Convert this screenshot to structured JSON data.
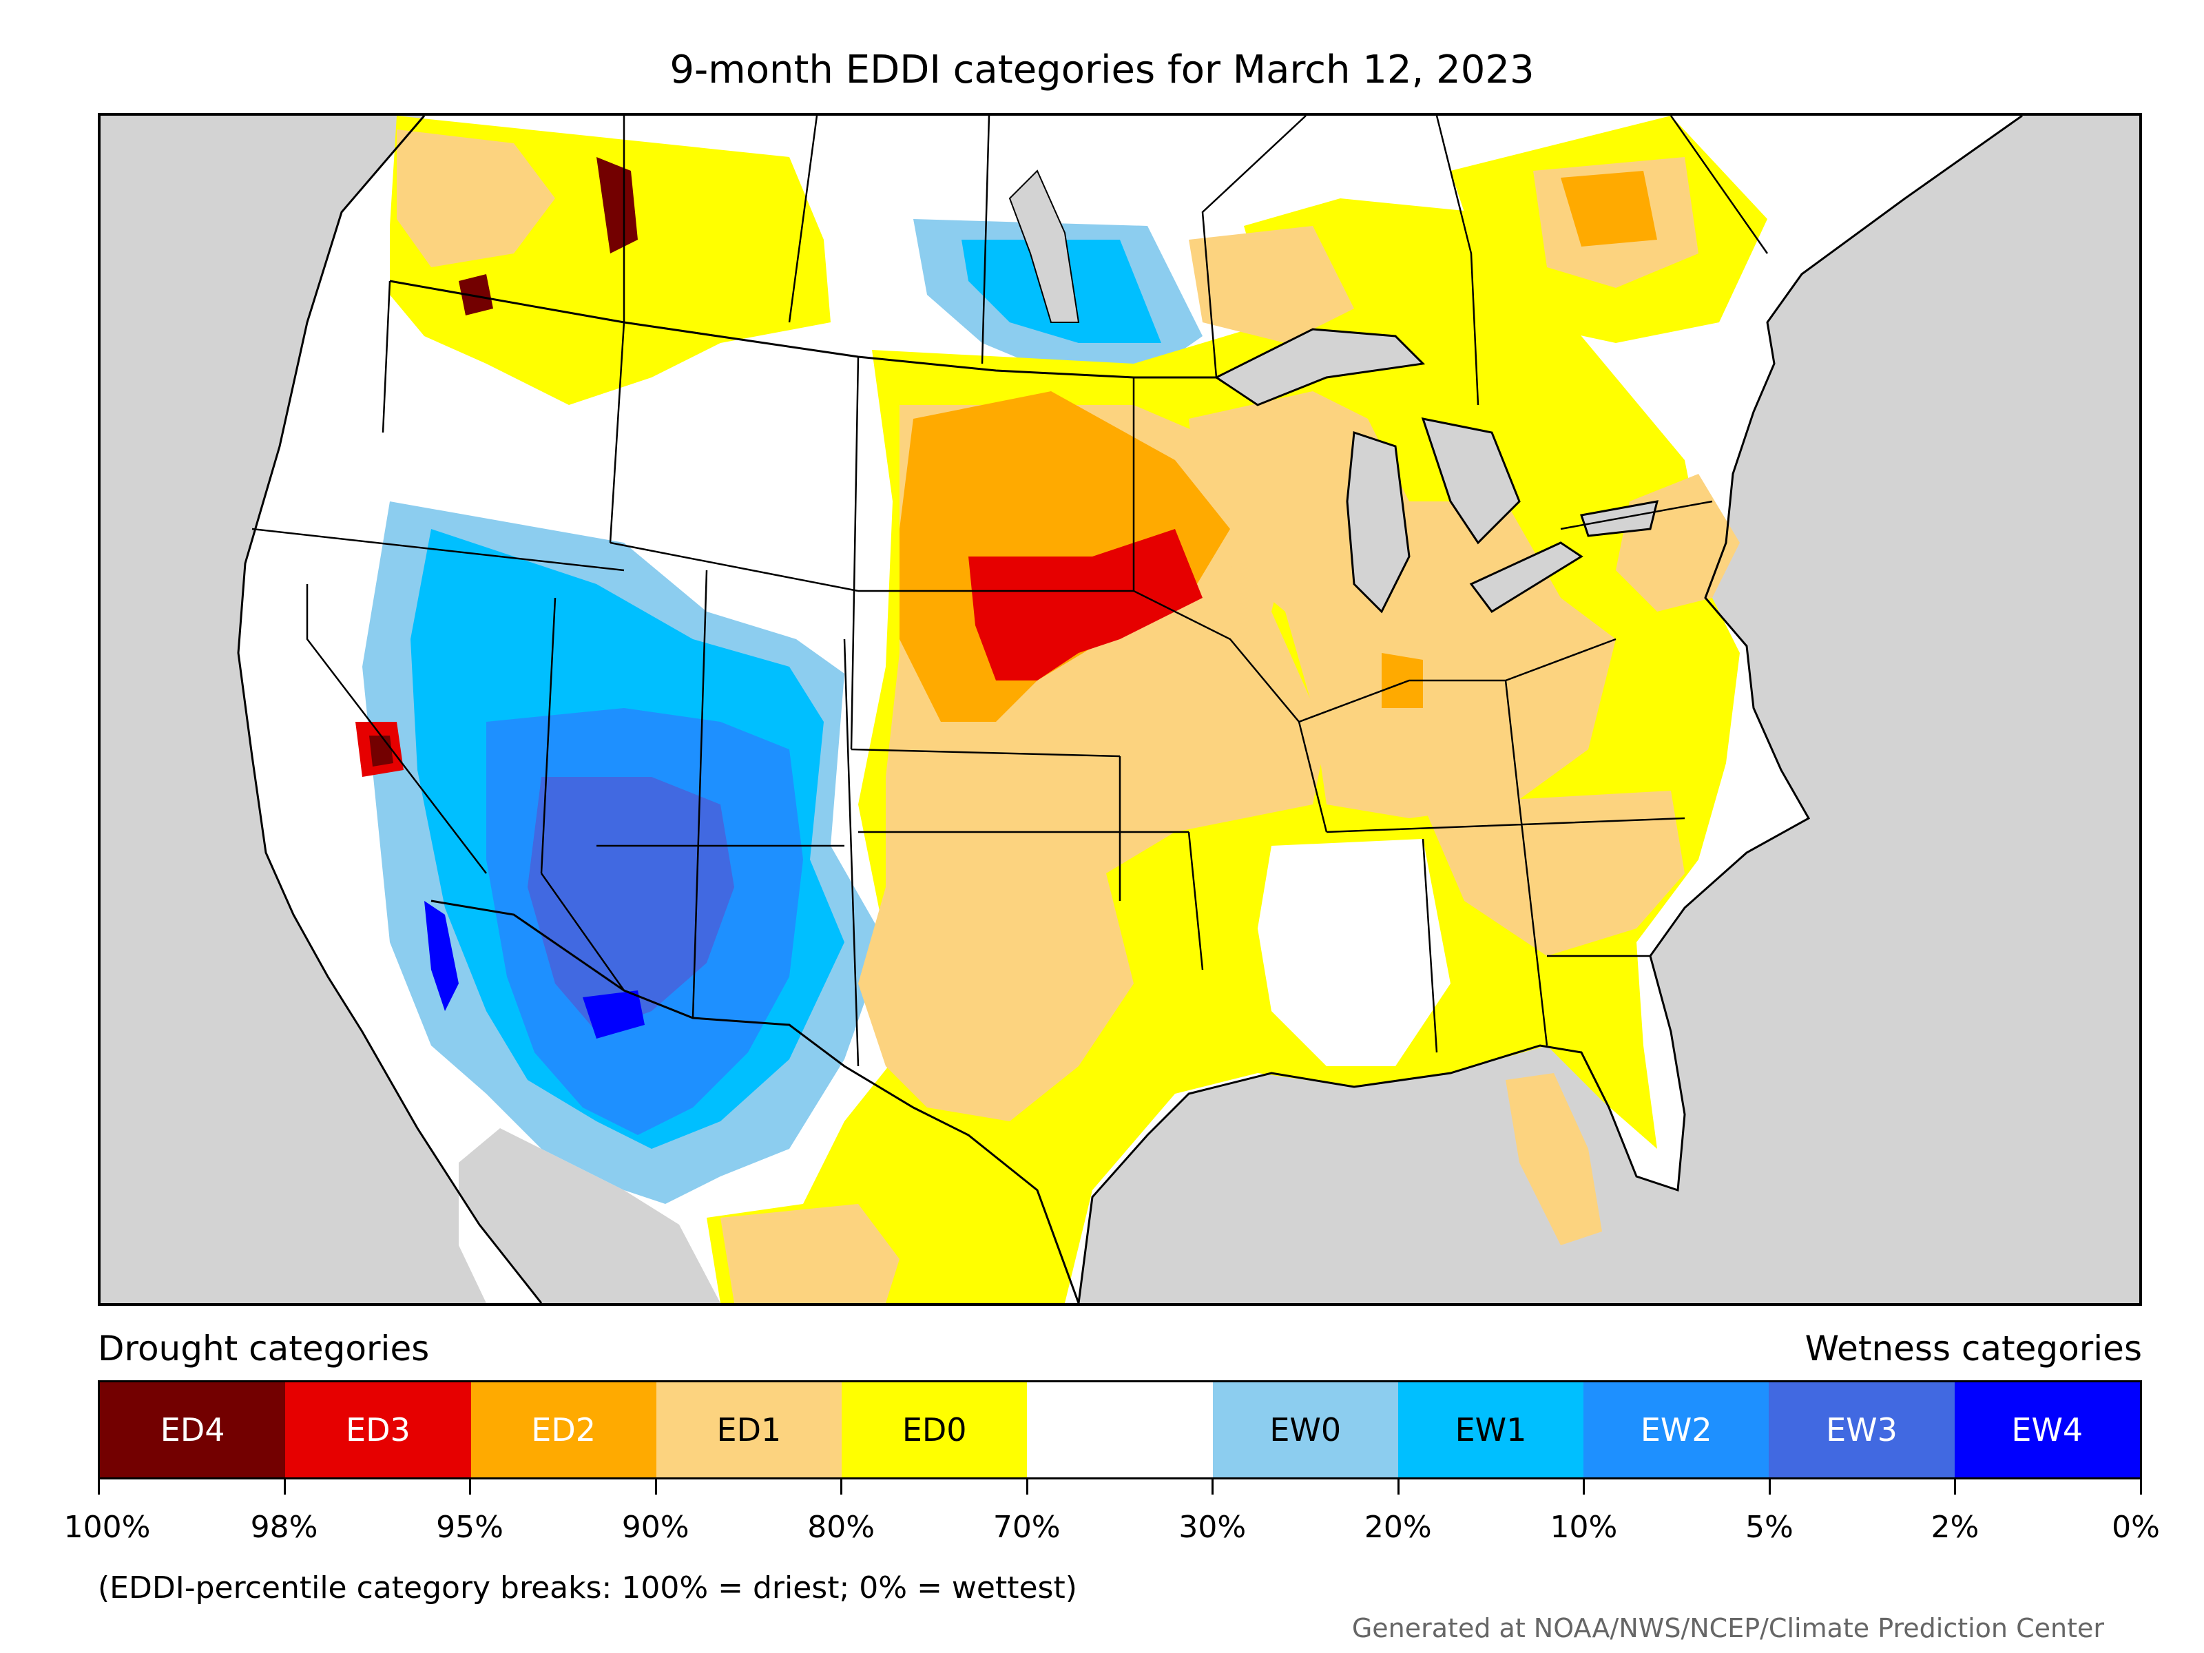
{
  "title": "9-month EDDI categories for March 12, 2023",
  "legend": {
    "drought_heading": "Drought categories",
    "wetness_heading": "Wetness categories",
    "categories": [
      {
        "label": "ED4",
        "color": "#730000",
        "text_color": "#ffffff"
      },
      {
        "label": "ED3",
        "color": "#e60000",
        "text_color": "#ffffff"
      },
      {
        "label": "ED2",
        "color": "#ffaa00",
        "text_color": "#ffffff"
      },
      {
        "label": "ED1",
        "color": "#fcd37f",
        "text_color": "#000000"
      },
      {
        "label": "ED0",
        "color": "#ffff00",
        "text_color": "#000000"
      },
      {
        "label": "",
        "color": "#ffffff",
        "text_color": "#000000"
      },
      {
        "label": "EW0",
        "color": "#8ccdef",
        "text_color": "#000000"
      },
      {
        "label": "EW1",
        "color": "#00bfff",
        "text_color": "#000000"
      },
      {
        "label": "EW2",
        "color": "#1e90ff",
        "text_color": "#ffffff"
      },
      {
        "label": "EW3",
        "color": "#4169e1",
        "text_color": "#ffffff"
      },
      {
        "label": "EW4",
        "color": "#0000ff",
        "text_color": "#ffffff"
      }
    ],
    "breaks": [
      "100%",
      "98%",
      "95%",
      "90%",
      "80%",
      "70%",
      "30%",
      "20%",
      "10%",
      "5%",
      "2%",
      "0%"
    ]
  },
  "note": "(EDDI-percentile category breaks: 100% = driest; 0% = wettest)",
  "credit": "Generated at NOAA/NWS/NCEP/Climate Prediction Center"
}
